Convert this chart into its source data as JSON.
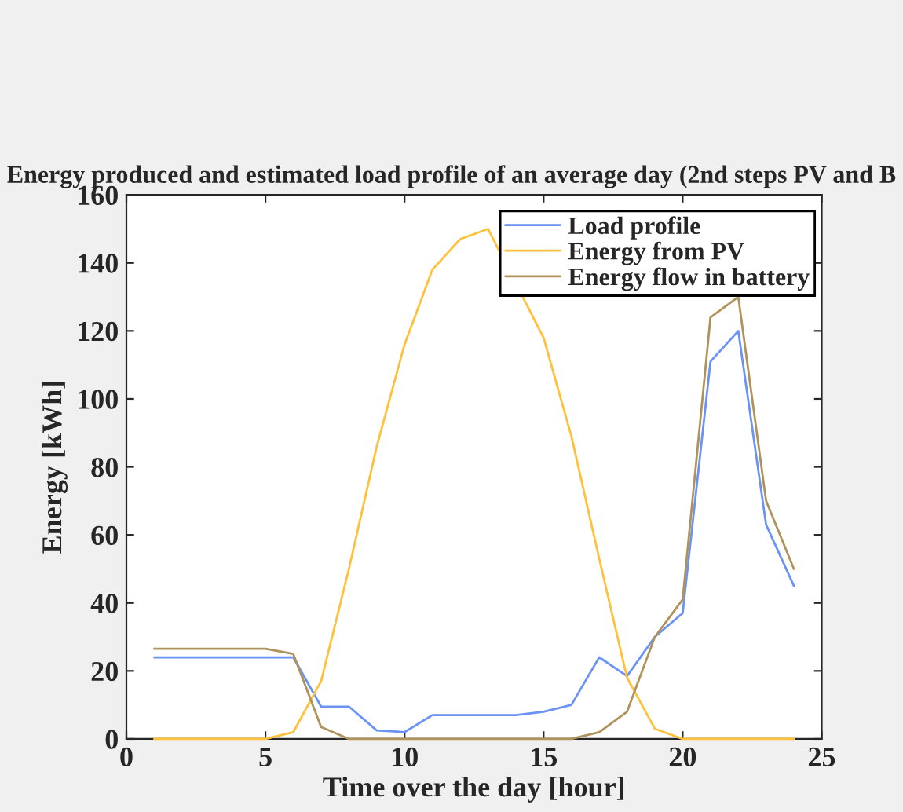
{
  "chart_data": {
    "type": "line",
    "title": "Energy produced and estimated load profile of an average day (2nd steps PV and B",
    "xlabel": "Time over the day [hour]",
    "ylabel": "Energy [kWh]",
    "x": [
      1,
      2,
      3,
      4,
      5,
      6,
      7,
      8,
      9,
      10,
      11,
      12,
      13,
      14,
      15,
      16,
      17,
      18,
      19,
      20,
      21,
      22,
      23,
      24
    ],
    "series": [
      {
        "name": "Load profile",
        "color": "#6b93f5",
        "values": [
          24,
          24,
          24,
          24,
          24,
          24,
          9.5,
          9.5,
          2.5,
          2,
          7,
          7,
          7,
          7,
          8,
          10,
          24,
          18.5,
          30,
          37,
          111,
          120,
          63,
          45
        ]
      },
      {
        "name": "Energy from PV",
        "color": "#ffc13b",
        "values": [
          0,
          0,
          0,
          0,
          0,
          2,
          17,
          50,
          86,
          116,
          138,
          147,
          150,
          null,
          118,
          89,
          53,
          18,
          3,
          0,
          0,
          0,
          0,
          0
        ]
      },
      {
        "name": "Energy flow in battery",
        "color": "#b0935a",
        "values": [
          26.5,
          26.5,
          26.5,
          26.5,
          26.5,
          25,
          3.5,
          0,
          0,
          0,
          0,
          0,
          0,
          0,
          0,
          0,
          2,
          8,
          30,
          41,
          124,
          130,
          70,
          50
        ]
      }
    ],
    "xlim": [
      0,
      25
    ],
    "xticks": [
      0,
      5,
      10,
      15,
      20,
      25
    ],
    "ylim": [
      0,
      160
    ],
    "yticks": [
      0,
      20,
      40,
      60,
      80,
      100,
      120,
      140,
      160
    ],
    "grid": false,
    "legend": "top right",
    "marker": "none",
    "line_style": "solid"
  }
}
